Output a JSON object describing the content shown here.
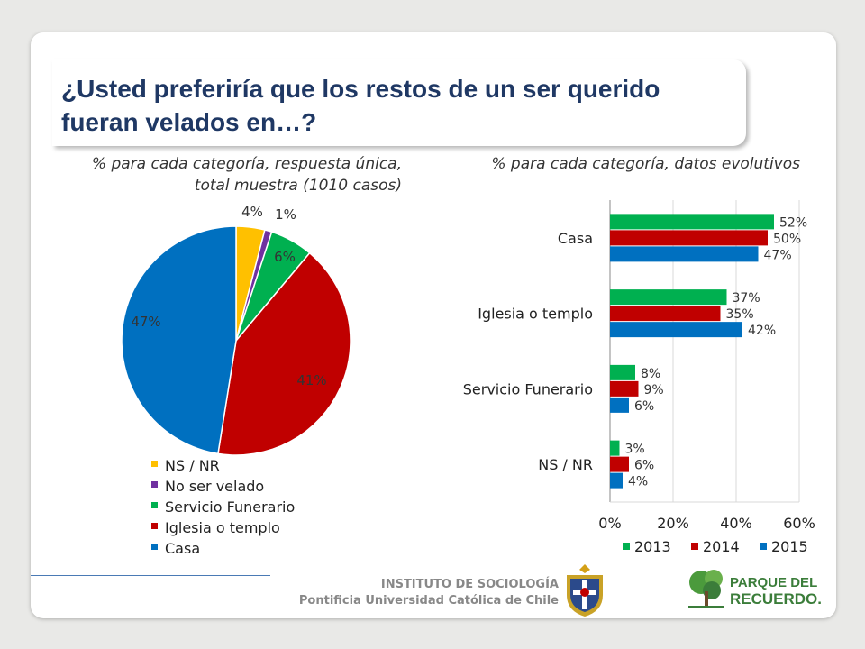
{
  "slide": {
    "title": "¿Usted preferiría que los restos de un ser querido fueran velados en…?",
    "left_subtitle": "% para cada categoría, respuesta única, total muestra (1010 casos)",
    "right_subtitle": "% para cada categoría, datos evolutivos"
  },
  "chart_data": [
    {
      "type": "pie",
      "categories": [
        "NS / NR",
        "No ser velado",
        "Servicio Funerario",
        "Iglesia o templo",
        "Casa"
      ],
      "values": [
        4,
        1,
        6,
        41,
        47
      ],
      "labels": [
        "4%",
        "1%",
        "6%",
        "41%",
        "47%"
      ],
      "colors": [
        "#ffc000",
        "#7030a0",
        "#00b050",
        "#c00000",
        "#0070c0"
      ],
      "legend_position": "bottom-left"
    },
    {
      "type": "bar",
      "orientation": "horizontal",
      "categories": [
        "Casa",
        "Iglesia o templo",
        "Servicio Funerario",
        "NS / NR"
      ],
      "series": [
        {
          "name": "2013",
          "color": "#00b050",
          "values": [
            52,
            37,
            8,
            3
          ],
          "labels": [
            "52%",
            "37%",
            "8%",
            "3%"
          ]
        },
        {
          "name": "2014",
          "color": "#c00000",
          "values": [
            50,
            35,
            9,
            6
          ],
          "labels": [
            "50%",
            "35%",
            "9%",
            "6%"
          ]
        },
        {
          "name": "2015",
          "color": "#0070c0",
          "values": [
            47,
            42,
            6,
            4
          ],
          "labels": [
            "47%",
            "42%",
            "6%",
            "4%"
          ]
        }
      ],
      "xlim": [
        0,
        60
      ],
      "x_ticks": [
        "0%",
        "20%",
        "40%",
        "60%"
      ],
      "grid": true,
      "legend_position": "bottom"
    }
  ],
  "footer": {
    "institute": "INSTITUTO DE SOCIOLOGÍA",
    "university": "Pontificia Universidad Católica de Chile",
    "logo_line1": "PARQUE DEL",
    "logo_line2": "RECUERDO."
  }
}
